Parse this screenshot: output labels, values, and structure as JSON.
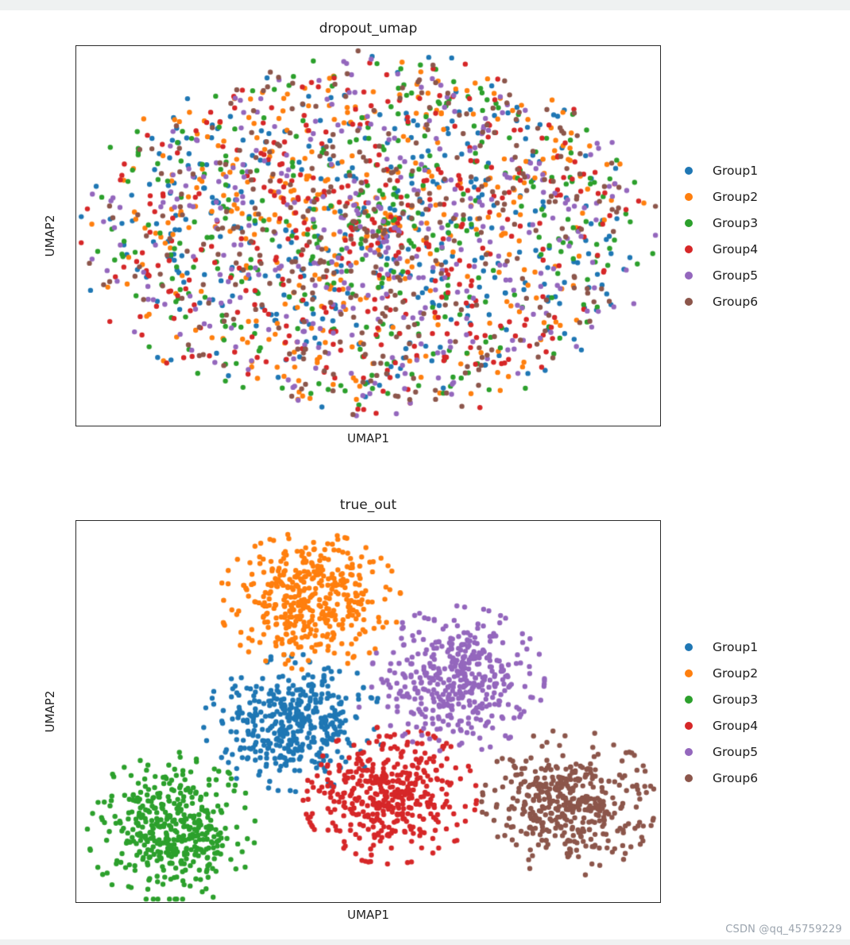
{
  "page": {
    "watermark": "CSDN @qq_45759229",
    "watermark_color": "#9ba4ae",
    "background": "#ffffff"
  },
  "groups": [
    {
      "name": "Group1",
      "color": "#1f77b4"
    },
    {
      "name": "Group2",
      "color": "#ff7f0e"
    },
    {
      "name": "Group3",
      "color": "#2ca02c"
    },
    {
      "name": "Group4",
      "color": "#d62728"
    },
    {
      "name": "Group5",
      "color": "#9467bd"
    },
    {
      "name": "Group6",
      "color": "#8c564b"
    }
  ],
  "chart_data": [
    {
      "type": "scatter",
      "title": "dropout_umap",
      "xlabel": "UMAP1",
      "ylabel": "UMAP2",
      "ticks": "none",
      "grid": false,
      "legend_position": "right-outside",
      "point_radius": 3.2,
      "seed": 1337,
      "description": "Six groups fully intermixed in one large elliptical cloud (no cluster separation after dropout).",
      "series": [
        {
          "name": "Group1",
          "color": "#1f77b4",
          "distribution": "uniform-ellipse",
          "center": [
            0.503,
            0.5
          ],
          "radius": [
            0.475,
            0.46
          ],
          "count": 360,
          "center_bias": 0.62
        },
        {
          "name": "Group2",
          "color": "#ff7f0e",
          "distribution": "uniform-ellipse",
          "center": [
            0.503,
            0.5
          ],
          "radius": [
            0.475,
            0.46
          ],
          "count": 360,
          "center_bias": 0.62
        },
        {
          "name": "Group3",
          "color": "#2ca02c",
          "distribution": "uniform-ellipse",
          "center": [
            0.503,
            0.5
          ],
          "radius": [
            0.475,
            0.46
          ],
          "count": 360,
          "center_bias": 0.62
        },
        {
          "name": "Group4",
          "color": "#d62728",
          "distribution": "uniform-ellipse",
          "center": [
            0.503,
            0.5
          ],
          "radius": [
            0.475,
            0.46
          ],
          "count": 360,
          "center_bias": 0.62
        },
        {
          "name": "Group5",
          "color": "#9467bd",
          "distribution": "uniform-ellipse",
          "center": [
            0.503,
            0.5
          ],
          "radius": [
            0.475,
            0.46
          ],
          "count": 360,
          "center_bias": 0.62
        },
        {
          "name": "Group6",
          "color": "#8c564b",
          "distribution": "uniform-ellipse",
          "center": [
            0.503,
            0.5
          ],
          "radius": [
            0.475,
            0.46
          ],
          "count": 360,
          "center_bias": 0.62
        }
      ]
    },
    {
      "type": "scatter",
      "title": "true_out",
      "xlabel": "UMAP1",
      "ylabel": "UMAP2",
      "ticks": "none",
      "grid": false,
      "legend_position": "right-outside",
      "point_radius": 3.2,
      "seed": 4242,
      "description": "Six well-separated gaussian clusters: orange top-center, purple upper-right, blue center-left, red center-bottom, green bottom-left, brown right.",
      "series": [
        {
          "name": "Group1",
          "color": "#1f77b4",
          "distribution": "gaussian-cluster",
          "center": [
            0.374,
            0.47
          ],
          "sigma": [
            0.065,
            0.075
          ],
          "count": 420,
          "clip": 2.4,
          "stray_every": 37,
          "stray_limit": 4.0
        },
        {
          "name": "Group2",
          "color": "#ff7f0e",
          "distribution": "gaussian-cluster",
          "center": [
            0.4,
            0.79
          ],
          "sigma": [
            0.065,
            0.075
          ],
          "count": 420,
          "clip": 2.4,
          "stray_every": 37,
          "stray_limit": 4.0
        },
        {
          "name": "Group3",
          "color": "#2ca02c",
          "distribution": "gaussian-cluster",
          "center": [
            0.163,
            0.19
          ],
          "sigma": [
            0.06,
            0.085
          ],
          "count": 420,
          "clip": 2.4,
          "stray_every": 37,
          "stray_limit": 4.0
        },
        {
          "name": "Group4",
          "color": "#d62728",
          "distribution": "gaussian-cluster",
          "center": [
            0.537,
            0.28
          ],
          "sigma": [
            0.062,
            0.075
          ],
          "count": 420,
          "clip": 2.4,
          "stray_every": 37,
          "stray_limit": 4.0
        },
        {
          "name": "Group5",
          "color": "#9467bd",
          "distribution": "gaussian-cluster",
          "center": [
            0.653,
            0.585
          ],
          "sigma": [
            0.062,
            0.08
          ],
          "count": 420,
          "clip": 2.4,
          "stray_every": 37,
          "stray_limit": 4.0
        },
        {
          "name": "Group6",
          "color": "#8c564b",
          "distribution": "gaussian-cluster",
          "center": [
            0.843,
            0.26
          ],
          "sigma": [
            0.062,
            0.08
          ],
          "count": 420,
          "clip": 2.4,
          "stray_every": 37,
          "stray_limit": 4.0
        }
      ]
    }
  ]
}
